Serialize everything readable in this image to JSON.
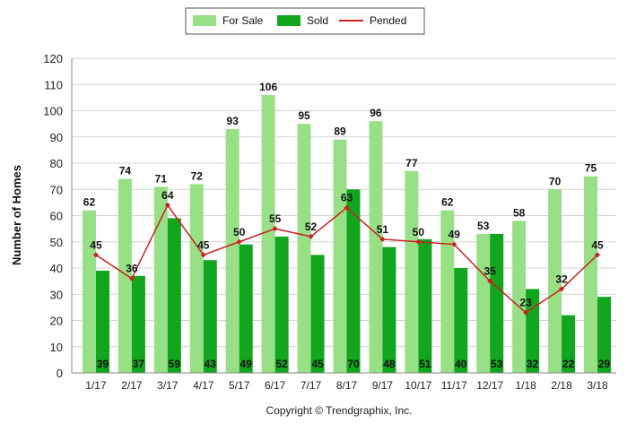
{
  "chart_data": {
    "type": "bar",
    "categories": [
      "1/17",
      "2/17",
      "3/17",
      "4/17",
      "5/17",
      "6/17",
      "7/17",
      "8/17",
      "9/17",
      "10/17",
      "11/17",
      "12/17",
      "1/18",
      "2/18",
      "3/18"
    ],
    "series": [
      {
        "name": "For Sale",
        "kind": "bar",
        "color": "#98e086",
        "values": [
          62,
          74,
          71,
          72,
          93,
          106,
          95,
          89,
          96,
          77,
          62,
          53,
          58,
          70,
          75
        ]
      },
      {
        "name": "Sold",
        "kind": "bar",
        "color": "#12a51e",
        "values": [
          39,
          37,
          59,
          43,
          49,
          52,
          45,
          70,
          48,
          51,
          40,
          53,
          32,
          22,
          29
        ]
      },
      {
        "name": "Pended",
        "kind": "line",
        "color": "#cc1f1f",
        "values": [
          45,
          36,
          64,
          45,
          50,
          55,
          52,
          63,
          51,
          50,
          49,
          35,
          23,
          32,
          45
        ]
      }
    ],
    "ylabel": "Number of Homes",
    "ylim": [
      0,
      120
    ],
    "yticks": [
      0,
      10,
      20,
      30,
      40,
      50,
      60,
      70,
      80,
      90,
      100,
      110,
      120
    ],
    "grid": true,
    "legend_position": "top-center"
  },
  "footer": {
    "copyright": "Copyright © Trendgraphix, Inc."
  }
}
